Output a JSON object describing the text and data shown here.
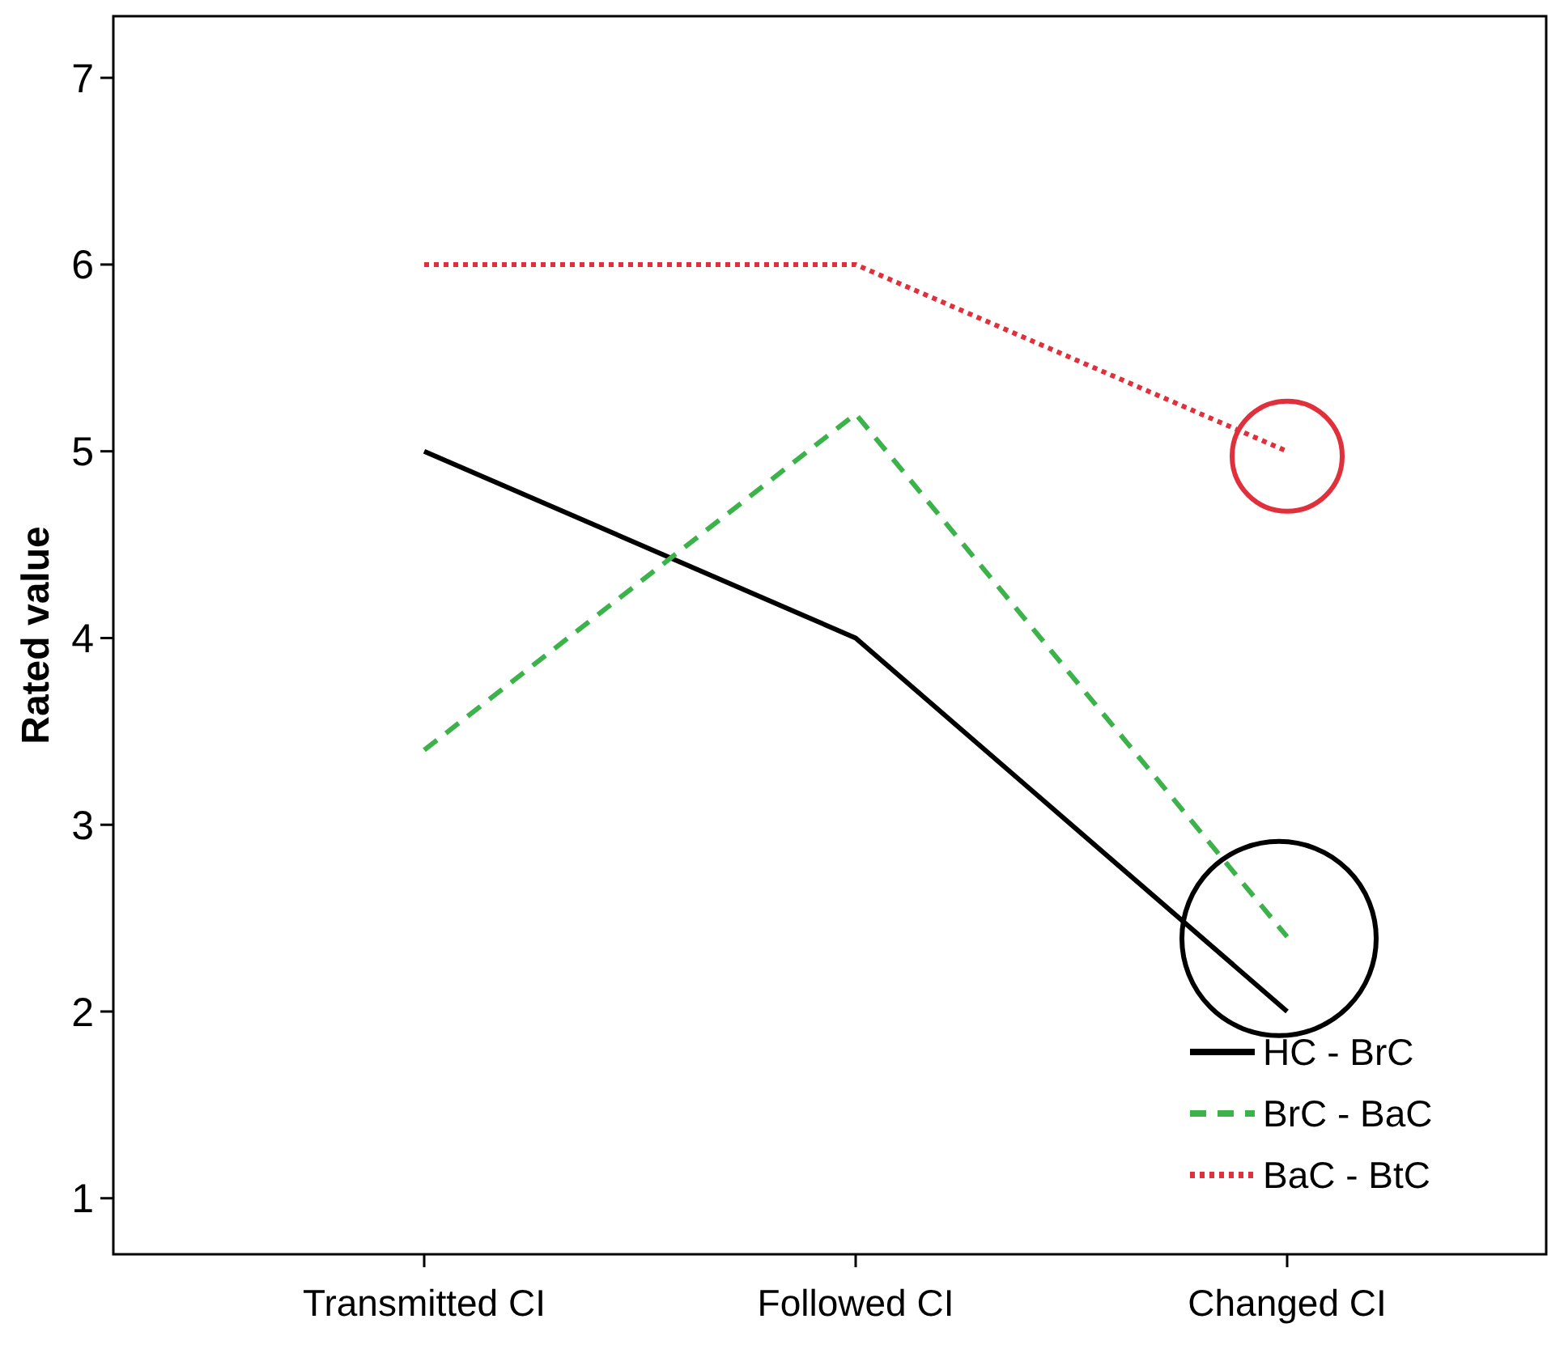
{
  "chart_data": {
    "type": "line",
    "ylabel": "Rated value",
    "categories": [
      "Transmitted CI",
      "Followed CI",
      "Changed CI"
    ],
    "series": [
      {
        "name": "HC - BrC",
        "color": "#000000",
        "line_style": "solid",
        "values": [
          5.0,
          4.0,
          2.0
        ]
      },
      {
        "name": "BrC - BaC",
        "color": "#3cb34a",
        "line_style": "dashed",
        "values": [
          3.4,
          5.2,
          2.4
        ]
      },
      {
        "name": "BaC - BtC",
        "color": "#e0303c",
        "line_style": "dotted",
        "values": [
          6.0,
          6.0,
          5.0
        ]
      }
    ],
    "ylim": [
      0.7,
      7.33
    ],
    "yticks": [
      1,
      2,
      3,
      4,
      5,
      6,
      7
    ],
    "grid": false,
    "legend": "bottom right",
    "marker": "none"
  }
}
